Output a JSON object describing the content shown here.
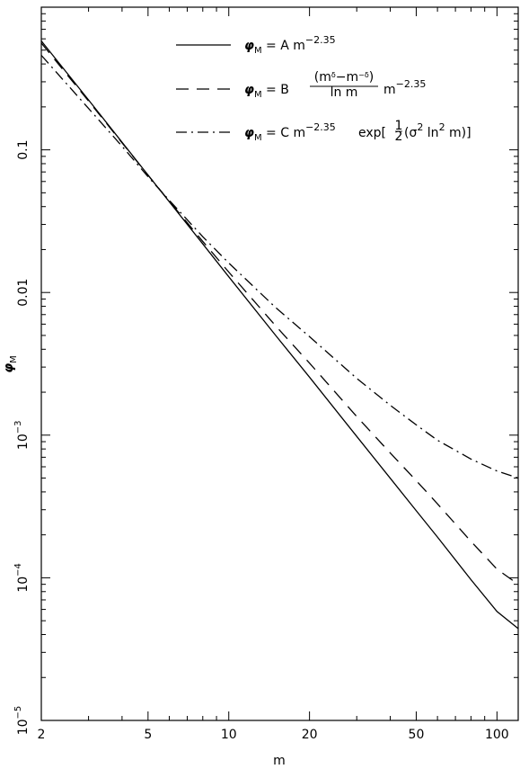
{
  "chart_data": {
    "type": "line",
    "xlabel": "m",
    "ylabel_main": "φ",
    "ylabel_sub": "M",
    "xscale": "log",
    "yscale": "log",
    "xlim": [
      2,
      120
    ],
    "ylim": [
      1e-05,
      1
    ],
    "grid": false,
    "legend_position": "top-right",
    "x_ticks": [
      {
        "value": 2,
        "label": "2"
      },
      {
        "value": 5,
        "label": "5"
      },
      {
        "value": 10,
        "label": "10"
      },
      {
        "value": 20,
        "label": "20"
      },
      {
        "value": 50,
        "label": "50"
      },
      {
        "value": 100,
        "label": "100"
      }
    ],
    "y_ticks": [
      {
        "value": 0.1,
        "mantissa": "0.1",
        "exponent": ""
      },
      {
        "value": 0.01,
        "mantissa": "0.01",
        "exponent": ""
      },
      {
        "value": 0.001,
        "mantissa": "10",
        "exponent": "−3"
      },
      {
        "value": 0.0001,
        "mantissa": "10",
        "exponent": "−4"
      },
      {
        "value": 1e-05,
        "mantissa": "10",
        "exponent": "−5"
      }
    ],
    "series": [
      {
        "style": "solid",
        "legend": {
          "lhs": "φ",
          "sub": "M",
          "eq": " = A  m",
          "exp": "−2.35",
          "tail": ""
        },
        "x": [
          2,
          3,
          4,
          5,
          6,
          8,
          10,
          15,
          20,
          30,
          40,
          50,
          60,
          80,
          100,
          120
        ],
        "y": [
          0.58,
          0.224,
          0.113,
          0.0666,
          0.0433,
          0.0219,
          0.0129,
          0.00497,
          0.00255,
          0.00098,
          0.000499,
          0.000295,
          0.000193,
          9.7e-05,
          5.8e-05,
          4.4e-05
        ]
      },
      {
        "style": "dashed",
        "legend": {
          "lhs": "φ",
          "sub": "M",
          "eq": " = B",
          "frac_num": "(m",
          "frac_num_sup1": "δ",
          "frac_mid": "−m",
          "frac_num_sup2": "−δ",
          "frac_close": ")",
          "frac_den": "ln m",
          "tail": "m",
          "exp": "−2.35"
        },
        "x": [
          2,
          3,
          4,
          5,
          6,
          8,
          10,
          15,
          20,
          30,
          40,
          50,
          60,
          80,
          100,
          120
        ],
        "y": [
          0.56,
          0.22,
          0.112,
          0.0665,
          0.0436,
          0.0228,
          0.0139,
          0.0058,
          0.0032,
          0.00135,
          0.00075,
          0.00048,
          0.00033,
          0.00018,
          0.000115,
          9e-05
        ]
      },
      {
        "style": "dashdot",
        "legend": {
          "lhs": "φ",
          "sub": "M",
          "eq": " = C  m",
          "exp": "−2.35",
          "tail": "exp[",
          "half_num": "1",
          "half_den": "2",
          "tail2": "(σ",
          "sig_sup": "2",
          "tail3": " ln",
          "ln_sup": "2",
          "tail4": " m)]"
        },
        "x": [
          2,
          3,
          4,
          5,
          6,
          8,
          10,
          15,
          20,
          30,
          40,
          50,
          60,
          80,
          100,
          120
        ],
        "y": [
          0.46,
          0.195,
          0.106,
          0.0648,
          0.0443,
          0.0246,
          0.0161,
          0.0078,
          0.0049,
          0.0025,
          0.00162,
          0.00118,
          0.00092,
          0.00068,
          0.00056,
          0.0005
        ]
      }
    ]
  }
}
